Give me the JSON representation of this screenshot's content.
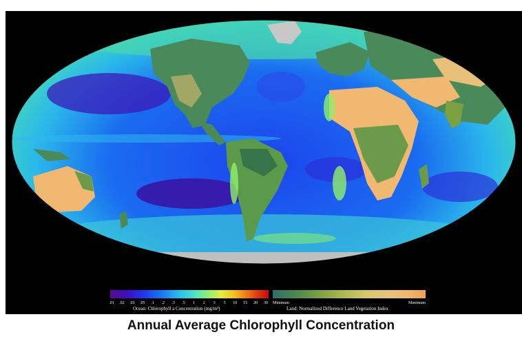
{
  "caption": "Annual Average Chlorophyll Concentration",
  "ocean_legend": {
    "ticks": [
      ".01",
      ".02",
      ".03",
      ".05",
      ".1",
      ".2",
      ".3",
      ".5",
      "1",
      "2",
      "3",
      "5",
      "10",
      "15",
      "20",
      "30"
    ],
    "label": "Ocean:  Chlorophyll a Concentration (mg/m³)",
    "colors": [
      "#5a0a8a",
      "#3a10c8",
      "#1c3cf0",
      "#1a7ff2",
      "#22c4ee",
      "#4fe6c8",
      "#8ef06a",
      "#e3f03a",
      "#f4c21a",
      "#f07a10",
      "#e03a0a",
      "#c40a0a"
    ]
  },
  "land_legend": {
    "min_label": "Minimum",
    "max_label": "Maximum",
    "label": "Land:  Normalized Difference Land Vegetation Index",
    "colors": [
      "#2a6e6a",
      "#4a8a4a",
      "#7aa040",
      "#a8b84a",
      "#d4c86a",
      "#e8c47a",
      "#f0b86c",
      "#f0a050"
    ]
  },
  "colors": {
    "frame": "#000000",
    "ocean_deep": "#1a3ee8",
    "ocean_oligotrophic": "#3a10b0",
    "ocean_mid": "#2a9cf0",
    "ocean_productive": "#3ee2b8",
    "land_desert": "#f0b870",
    "land_vegetated": "#4a8a5a",
    "ice": "#c8c8c8"
  }
}
